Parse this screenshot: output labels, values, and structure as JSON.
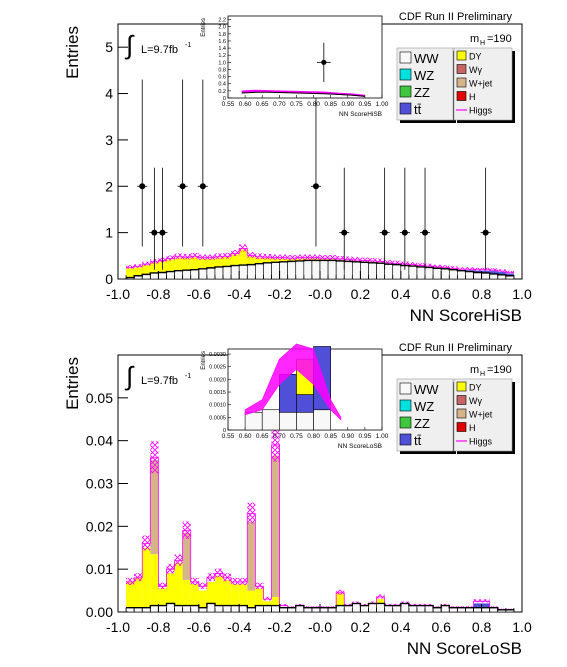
{
  "colors": {
    "WW": "#f8f8f8",
    "WZ": "#00e0e0",
    "ZZ": "#3ec63e",
    "ttbar": "#4f4fd8",
    "DY": "#ffff00",
    "Wgamma": "#c86464",
    "Wjet": "#d6b48a",
    "H": "#e00000",
    "Higgs": "#ff00ff",
    "frame": "#000000"
  },
  "chart_data": [
    {
      "type": "bar",
      "variant": "stacked-histogram-with-data-points",
      "xlabel": "NN ScoreHiSB",
      "ylabel": "Entries",
      "xlim": [
        -1.0,
        1.0
      ],
      "ylim": [
        0,
        5.5
      ],
      "xticks": [
        "-1.0",
        "-0.8",
        "-0.6",
        "-0.4",
        "-0.2",
        "-0.0",
        "0.2",
        "0.4",
        "0.6",
        "0.8",
        "1.0"
      ],
      "yticks": [
        "0",
        "1",
        "2",
        "3",
        "4",
        "5"
      ],
      "banner": "CDF Run II Preliminary",
      "mass_label": "m",
      "mass_sub": "H",
      "mass_value": "=190",
      "lumi": "L=9.7fb",
      "lumi_sup": "-1",
      "integral_sign": "∫",
      "legend": [
        "WW",
        "WZ",
        "ZZ",
        "tt̄",
        "DY",
        "Wγ",
        "W+jet",
        "H",
        "Higgs"
      ],
      "bin_edges": [
        -0.96,
        -0.92,
        -0.88,
        -0.84,
        -0.8,
        -0.76,
        -0.72,
        -0.68,
        -0.64,
        -0.6,
        -0.56,
        -0.52,
        -0.48,
        -0.44,
        -0.4,
        -0.36,
        -0.32,
        -0.28,
        -0.24,
        -0.2,
        -0.16,
        -0.12,
        -0.08,
        -0.04,
        0.0,
        0.04,
        0.08,
        0.12,
        0.16,
        0.2,
        0.24,
        0.28,
        0.32,
        0.36,
        0.4,
        0.44,
        0.48,
        0.52,
        0.56,
        0.6,
        0.64,
        0.68,
        0.72,
        0.76,
        0.8,
        0.84,
        0.88,
        0.92,
        0.96
      ],
      "series": [
        {
          "name": "WW",
          "values": [
            0.03,
            0.07,
            0.1,
            0.13,
            0.14,
            0.16,
            0.18,
            0.19,
            0.2,
            0.22,
            0.24,
            0.26,
            0.27,
            0.29,
            0.3,
            0.31,
            0.33,
            0.35,
            0.36,
            0.37,
            0.38,
            0.39,
            0.4,
            0.4,
            0.4,
            0.4,
            0.39,
            0.38,
            0.37,
            0.36,
            0.35,
            0.34,
            0.32,
            0.31,
            0.29,
            0.28,
            0.26,
            0.25,
            0.23,
            0.22,
            0.2,
            0.18,
            0.16,
            0.14,
            0.13,
            0.11,
            0.09,
            0.07
          ]
        },
        {
          "name": "DY",
          "values": [
            0.2,
            0.18,
            0.2,
            0.22,
            0.24,
            0.26,
            0.28,
            0.26,
            0.27,
            0.22,
            0.2,
            0.2,
            0.2,
            0.24,
            0.34,
            0.18,
            0.13,
            0.1,
            0.08,
            0.07,
            0.05,
            0.05,
            0.04,
            0.04,
            0.03,
            0.03,
            0.02,
            0.02,
            0.02,
            0.02,
            0.02,
            0.02,
            0.01,
            0.01,
            0.01,
            0.01,
            0.01,
            0.01,
            0.01,
            0.01,
            0.01,
            0.01,
            0.01,
            0.01,
            0.01,
            0.01,
            0.01,
            0.01
          ]
        },
        {
          "name": "tt̄",
          "values": [
            0.0,
            0.0,
            0.0,
            0.0,
            0.0,
            0.0,
            0.0,
            0.0,
            0.0,
            0.0,
            0.0,
            0.0,
            0.0,
            0.0,
            0.0,
            0.0,
            0.0,
            0.0,
            0.0,
            0.0,
            0.0,
            0.0,
            0.0,
            0.0,
            0.0,
            0.0,
            0.0,
            0.0,
            0.0,
            0.0,
            0.0,
            0.0,
            0.0,
            0.0,
            0.0,
            0.0,
            0.0,
            0.0,
            0.0,
            0.0,
            0.0,
            0.0,
            0.02,
            0.03,
            0.04,
            0.05,
            0.05,
            0.04
          ]
        },
        {
          "name": "Higgs",
          "values": [
            0.25,
            0.27,
            0.32,
            0.37,
            0.4,
            0.44,
            0.48,
            0.47,
            0.49,
            0.46,
            0.46,
            0.48,
            0.49,
            0.55,
            0.66,
            0.51,
            0.48,
            0.47,
            0.46,
            0.46,
            0.45,
            0.46,
            0.46,
            0.46,
            0.45,
            0.45,
            0.43,
            0.42,
            0.41,
            0.4,
            0.39,
            0.38,
            0.35,
            0.34,
            0.32,
            0.31,
            0.29,
            0.28,
            0.26,
            0.25,
            0.23,
            0.21,
            0.21,
            0.2,
            0.2,
            0.19,
            0.17,
            0.14
          ]
        }
      ],
      "data_points": {
        "x": [
          -0.88,
          -0.82,
          -0.78,
          -0.68,
          -0.58,
          -0.02,
          0.12,
          0.32,
          0.42,
          0.52,
          0.82
        ],
        "y": [
          2,
          1,
          1,
          2,
          2,
          2,
          1,
          1,
          1,
          1,
          1
        ],
        "err_up": [
          2.3,
          1.4,
          1.4,
          2.3,
          2.3,
          2.3,
          1.4,
          1.4,
          1.4,
          1.4,
          1.4
        ],
        "err_down": [
          1.3,
          0.8,
          0.8,
          1.3,
          1.3,
          1.3,
          0.8,
          0.8,
          0.8,
          0.8,
          0.8
        ]
      },
      "inset": {
        "xlabel": "NN ScoreHiSB",
        "ylabel": "Entries",
        "xlim": [
          0.55,
          1.0
        ],
        "ylim": [
          0,
          2.3
        ],
        "xticks": [
          "0.55",
          "0.60",
          "0.65",
          "0.70",
          "0.75",
          "0.80",
          "0.85",
          "0.90",
          "0.95",
          "1.00"
        ],
        "yticks": [
          "0",
          "0.2",
          "0.4",
          "0.6",
          "0.8",
          "1.0",
          "1.2",
          "1.4",
          "1.6",
          "1.8",
          "2.0",
          "2.2"
        ],
        "band_x": [
          0.59,
          0.63,
          0.67,
          0.71,
          0.75,
          0.79,
          0.83,
          0.87,
          0.91,
          0.95
        ],
        "band_y": [
          0.18,
          0.2,
          0.19,
          0.18,
          0.17,
          0.16,
          0.15,
          0.12,
          0.1,
          0.06
        ],
        "bkg_y": [
          0.14,
          0.16,
          0.16,
          0.15,
          0.14,
          0.13,
          0.12,
          0.1,
          0.08,
          0.05
        ],
        "point": {
          "x": 0.83,
          "y": 1.0,
          "err": 0.55,
          "xerr": 0.02
        }
      }
    },
    {
      "type": "bar",
      "variant": "stacked-histogram",
      "xlabel": "NN ScoreLoSB",
      "ylabel": "Entries",
      "xlim": [
        -1.0,
        1.0
      ],
      "ylim": [
        0,
        0.06
      ],
      "xticks": [
        "-1.0",
        "-0.8",
        "-0.6",
        "-0.4",
        "-0.2",
        "-0.0",
        "0.2",
        "0.4",
        "0.6",
        "0.8",
        "1.0"
      ],
      "yticks": [
        "0.00",
        "0.01",
        "0.02",
        "0.03",
        "0.04",
        "0.05"
      ],
      "banner": "CDF Run II Preliminary",
      "mass_label": "m",
      "mass_sub": "H",
      "mass_value": "=190",
      "lumi": "L=9.7fb",
      "lumi_sup": "-1",
      "integral_sign": "∫",
      "legend": [
        "WW",
        "WZ",
        "ZZ",
        "tt̄",
        "DY",
        "Wγ",
        "W+jet",
        "H",
        "Higgs"
      ],
      "bin_edges": [
        -0.96,
        -0.92,
        -0.88,
        -0.84,
        -0.8,
        -0.76,
        -0.72,
        -0.68,
        -0.64,
        -0.6,
        -0.56,
        -0.52,
        -0.48,
        -0.44,
        -0.4,
        -0.36,
        -0.32,
        -0.28,
        -0.24,
        -0.2,
        -0.16,
        -0.12,
        -0.08,
        -0.04,
        0.0,
        0.04,
        0.08,
        0.12,
        0.16,
        0.2,
        0.24,
        0.28,
        0.32,
        0.36,
        0.4,
        0.44,
        0.48,
        0.52,
        0.56,
        0.6,
        0.64,
        0.68,
        0.72,
        0.76,
        0.8,
        0.84,
        0.88,
        0.92,
        0.96
      ],
      "series": [
        {
          "name": "WW",
          "values": [
            0.001,
            0.001,
            0.001,
            0.0015,
            0.0015,
            0.002,
            0.0015,
            0.0015,
            0.0015,
            0.001,
            0.002,
            0.0015,
            0.0015,
            0.0015,
            0.0015,
            0.001,
            0.0015,
            0.0015,
            0.0015,
            0.001,
            0.001,
            0.0015,
            0.001,
            0.001,
            0.001,
            0.001,
            0.0015,
            0.0015,
            0.002,
            0.0015,
            0.002,
            0.002,
            0.0015,
            0.0015,
            0.002,
            0.0015,
            0.0015,
            0.0015,
            0.001,
            0.0015,
            0.001,
            0.001,
            0.001,
            0.001,
            0.001,
            0.001,
            0.0005,
            0.0005
          ]
        },
        {
          "name": "DY",
          "values": [
            0.006,
            0.007,
            0.014,
            0.012,
            0.004,
            0.007,
            0.01,
            0.006,
            0.005,
            0.004,
            0.005,
            0.007,
            0.006,
            0.005,
            0.005,
            0.004,
            0.004,
            0.001,
            0.002,
            0.0,
            0.0,
            0.0,
            0.0,
            0.0,
            0.0,
            0.0,
            0.003,
            0.0,
            0.0,
            0.0,
            0.0,
            0.001,
            0.0,
            0.0,
            0.0,
            0.0,
            0.0,
            0.0,
            0.0,
            0.0,
            0.0,
            0.0,
            0.0,
            0.0,
            0.0,
            0.0,
            0.0,
            0.0
          ]
        },
        {
          "name": "W+jet",
          "values": [
            0.0,
            0.0,
            0.0,
            0.022,
            0.0,
            0.0,
            0.0,
            0.011,
            0.0,
            0.0,
            0.0,
            0.0,
            0.0,
            0.0,
            0.0,
            0.016,
            0.0,
            0.0,
            0.033,
            0.0,
            0.0,
            0.0,
            0.0,
            0.0,
            0.0,
            0.0,
            0.0,
            0.0,
            0.0,
            0.0,
            0.0,
            0.0,
            0.0,
            0.0,
            0.0,
            0.0,
            0.0,
            0.0,
            0.0,
            0.0,
            0.0,
            0.0,
            0.0,
            0.0,
            0.0,
            0.0,
            0.0,
            0.0
          ]
        },
        {
          "name": "tt̄",
          "values": [
            0.0,
            0.0,
            0.0,
            0.0,
            0.0,
            0.0,
            0.0,
            0.0,
            0.0,
            0.0,
            0.0,
            0.0,
            0.0,
            0.0,
            0.0,
            0.0,
            0.0,
            0.0,
            0.0,
            0.0,
            0.0,
            0.0,
            0.0,
            0.0,
            0.0,
            0.0,
            0.0,
            0.0,
            0.0,
            0.0,
            0.0,
            0.0,
            0.0,
            0.0,
            0.0,
            0.0,
            0.0,
            0.0,
            0.0,
            0.0,
            0.0,
            0.0,
            0.0,
            0.001,
            0.001,
            0.0,
            0.0,
            0.0
          ]
        },
        {
          "name": "Higgs",
          "values": [
            0.007,
            0.008,
            0.016,
            0.036,
            0.006,
            0.01,
            0.012,
            0.019,
            0.007,
            0.006,
            0.008,
            0.009,
            0.008,
            0.007,
            0.007,
            0.023,
            0.006,
            0.003,
            0.039,
            0.0015,
            0.001,
            0.0015,
            0.001,
            0.001,
            0.001,
            0.001,
            0.0045,
            0.0015,
            0.002,
            0.0015,
            0.002,
            0.0035,
            0.0015,
            0.0015,
            0.002,
            0.0015,
            0.0015,
            0.0015,
            0.001,
            0.0015,
            0.001,
            0.001,
            0.001,
            0.0025,
            0.0025,
            0.001,
            0.0005,
            0.0005
          ]
        }
      ],
      "inset": {
        "xlabel": "NN ScoreLoSB",
        "ylabel": "Entries",
        "xlim": [
          0.55,
          1.0
        ],
        "ylim": [
          0,
          0.0032
        ],
        "xticks": [
          "0.55",
          "0.60",
          "0.65",
          "0.70",
          "0.75",
          "0.80",
          "0.85",
          "0.90",
          "0.95",
          "1.00"
        ],
        "yticks": [
          "0",
          "0.0005",
          "0.0010",
          "0.0015",
          "0.0020",
          "0.0025",
          "0.0030"
        ],
        "bins": [
          {
            "x0": 0.6,
            "x1": 0.65,
            "WW": 0.0007,
            "ttbar": 0.0,
            "DY": 0.0
          },
          {
            "x0": 0.65,
            "x1": 0.7,
            "WW": 0.0008,
            "ttbar": 0.0,
            "DY": 0.0
          },
          {
            "x0": 0.7,
            "x1": 0.75,
            "WW": 0.0007,
            "ttbar": 0.0015,
            "DY": 0.0
          },
          {
            "x0": 0.75,
            "x1": 0.8,
            "WW": 0.0007,
            "ttbar": 0.0007,
            "DY": 0.0014
          },
          {
            "x0": 0.8,
            "x1": 0.85,
            "WW": 0.0008,
            "ttbar": 0.0025,
            "DY": 0.0
          }
        ],
        "band_x": [
          0.6,
          0.65,
          0.7,
          0.75,
          0.8,
          0.85,
          0.88
        ],
        "band_lo": [
          0.0006,
          0.0008,
          0.0018,
          0.0024,
          0.0018,
          0.0008,
          0.0004
        ],
        "band_hi": [
          0.0008,
          0.0012,
          0.0028,
          0.0034,
          0.0032,
          0.0012,
          0.0005
        ]
      }
    }
  ]
}
